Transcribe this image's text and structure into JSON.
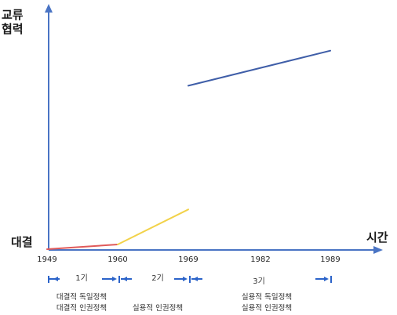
{
  "chart_data": {
    "type": "line",
    "y_axis_label": [
      "교류",
      "협력"
    ],
    "y_axis_bottom_label": "대결",
    "x_axis_label": "시간",
    "x_ticks": [
      "1949",
      "1960",
      "1969",
      "1982",
      "1989"
    ],
    "series": [
      {
        "color": "#e05a5a",
        "points": [
          [
            1949,
            0.0
          ],
          [
            1960,
            0.02
          ]
        ]
      },
      {
        "color": "#f2d24a",
        "points": [
          [
            1960,
            0.02
          ],
          [
            1969,
            0.17
          ]
        ]
      },
      {
        "color": "#3f5ea8",
        "points": [
          [
            1969,
            0.7
          ],
          [
            1989,
            0.85
          ]
        ]
      }
    ],
    "periods": [
      {
        "label": "1기",
        "policies": [
          "대결적 독일정책",
          "대결적 인권정책"
        ]
      },
      {
        "label": "2기",
        "policies": [
          "실용적 인권정책"
        ]
      },
      {
        "label": "3기",
        "policies": [
          "실용적 독일정책",
          "실용적 인권정책"
        ]
      }
    ],
    "colors": {
      "axis": "#4a74c4",
      "arrow": "#2b63c9"
    }
  }
}
